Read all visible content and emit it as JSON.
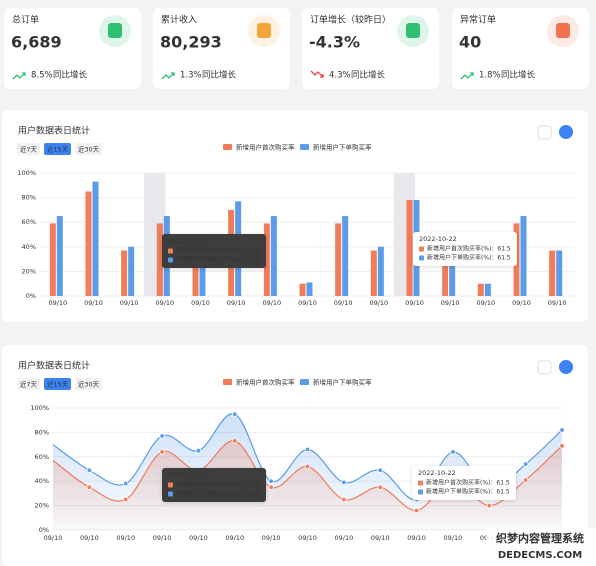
{
  "cards": [
    {
      "title": "总订单",
      "value": "6,689",
      "change": "8.5%",
      "change_label": "同比增长",
      "trend": "up",
      "icon_color": "#2fbf71"
    },
    {
      "title": "累计收入",
      "value": "80,293",
      "change": "1.3%",
      "change_label": "同比增长",
      "trend": "up",
      "icon_color": "#f5a43a"
    },
    {
      "title": "订单增长（较昨日）",
      "value": "-4.3%",
      "change": "4.3%",
      "change_label": "同比增长",
      "trend": "down",
      "icon_color": "#2fbf71"
    },
    {
      "title": "异常订单",
      "value": "40",
      "change": "1.8%",
      "change_label": "同比增长",
      "trend": "up",
      "icon_color": "#f0734f"
    }
  ],
  "chart_data": [
    {
      "type": "bar",
      "title": "用户数据表日统计",
      "tabs": [
        "近7天",
        "近15天",
        "近30天"
      ],
      "active_tab": 1,
      "categories": [
        "09/10",
        "09/10",
        "09/10",
        "09/10",
        "09/10",
        "09/10",
        "09/10",
        "09/10",
        "09/10",
        "09/10",
        "09/10",
        "09/10",
        "09/10",
        "09/10",
        "09/10"
      ],
      "series": [
        {
          "name": "新增用户首次购买率",
          "color": "#f07c5a",
          "values": [
            59,
            85,
            37,
            59,
            35,
            70,
            59,
            10,
            59,
            37,
            78,
            30,
            10,
            59,
            37
          ]
        },
        {
          "name": "新增用户下单购买率",
          "color": "#5b9be8",
          "values": [
            65,
            93,
            40,
            65,
            37,
            77,
            65,
            11,
            65,
            40,
            78,
            30,
            10,
            65,
            37
          ]
        }
      ],
      "ylim": [
        0,
        100
      ],
      "yticks": [
        {
          "value": 0,
          "label": "0%"
        },
        {
          "value": 20,
          "label": "20%"
        },
        {
          "value": 40,
          "label": "40%"
        },
        {
          "value": 60,
          "label": "60%"
        },
        {
          "value": 80,
          "label": "80%"
        },
        {
          "value": 100,
          "label": "100%"
        }
      ],
      "grid": true,
      "tooltips": [
        {
          "title": "2022-10-22",
          "style": "dark",
          "rows": [
            {
              "label": "新增用户首次购买率(%)：",
              "value": 61.5
            },
            {
              "label": "新增用户下单购买率(%)：",
              "value": 61.5
            }
          ]
        },
        {
          "title": "2022-10-22",
          "style": "light",
          "rows": [
            {
              "label": "新增用户首次购买率(%)：",
              "value": 61.5
            },
            {
              "label": "新增用户下单购买率(%)：",
              "value": 61.5
            }
          ]
        }
      ]
    },
    {
      "type": "line",
      "title": "用户数据表日统计",
      "tabs": [
        "近7天",
        "近15天",
        "近30天"
      ],
      "active_tab": 1,
      "categories": [
        "09/10",
        "09/10",
        "09/10",
        "09/10",
        "09/10",
        "09/10",
        "09/10",
        "09/10",
        "09/10",
        "09/10",
        "09/10",
        "09/10",
        "09/10",
        "09/10",
        "09/10"
      ],
      "series": [
        {
          "name": "新增用户首次购买率",
          "color": "#f07c5a",
          "values": [
            57,
            35,
            25,
            64,
            49,
            73,
            35,
            52,
            25,
            35,
            16,
            41,
            20,
            41,
            69
          ]
        },
        {
          "name": "新增用户下单购买率",
          "color": "#5b9be8",
          "values": [
            70,
            49,
            38,
            77,
            65,
            95,
            40,
            66,
            39,
            49,
            25,
            64,
            33,
            54,
            82
          ]
        }
      ],
      "ylim": [
        0,
        100
      ],
      "yticks": [
        {
          "value": 0,
          "label": "0%"
        },
        {
          "value": 20,
          "label": "20%"
        },
        {
          "value": 40,
          "label": "40%"
        },
        {
          "value": 60,
          "label": "60%"
        },
        {
          "value": 80,
          "label": "80%"
        },
        {
          "value": 100,
          "label": "100%"
        }
      ],
      "grid": true,
      "tooltips": [
        {
          "title": "2022-10-22",
          "style": "dark",
          "rows": [
            {
              "label": "新增用户首次购买率(%)：",
              "value": 61.5
            },
            {
              "label": "新增用户下单购买率(%)：",
              "value": 61.5
            }
          ]
        },
        {
          "title": "2022-10-22",
          "style": "light",
          "rows": [
            {
              "label": "新增用户首次购买率(%)：",
              "value": 61.5
            },
            {
              "label": "新增用户下单购买率(%)：",
              "value": 61.5
            }
          ]
        }
      ]
    }
  ],
  "watermark": {
    "line1": "织梦内容管理系统",
    "line2": "DEDECMS.COM"
  }
}
